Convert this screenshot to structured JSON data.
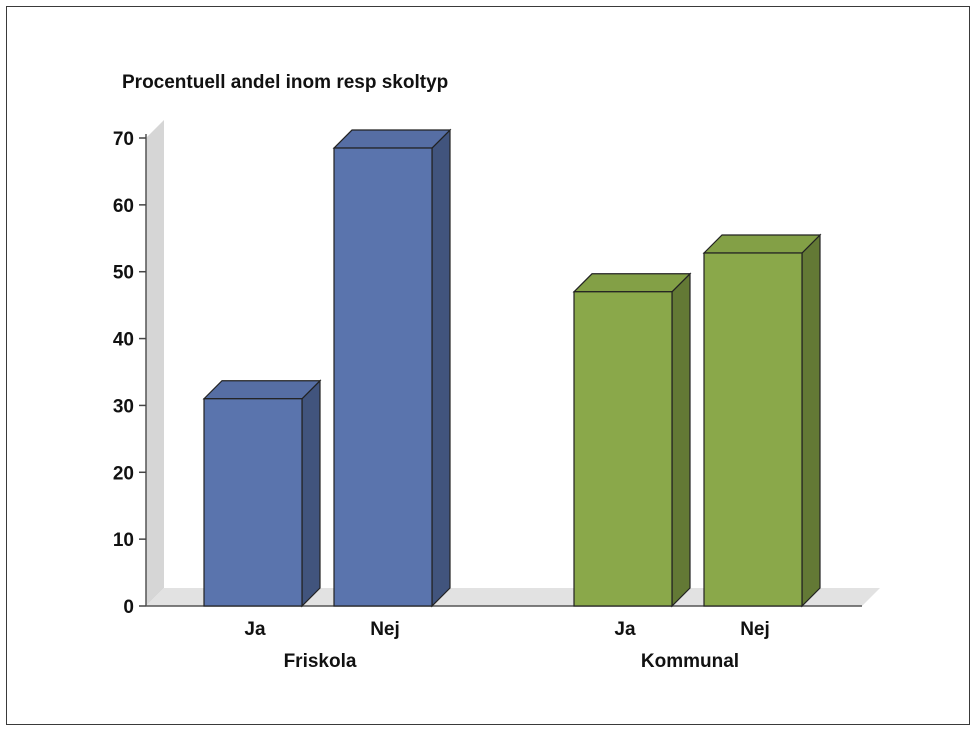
{
  "chart_data": {
    "type": "bar",
    "title": "Procentuell andel inom resp skoltyp",
    "xlabel": "",
    "ylabel": "",
    "ylim": [
      0,
      70
    ],
    "yticks": [
      0,
      10,
      20,
      30,
      40,
      50,
      60,
      70
    ],
    "grid": false,
    "legend": "none",
    "three_d": true,
    "groups": [
      {
        "label": "Friskola",
        "color": "#5a74ad",
        "bars": [
          {
            "label": "Ja",
            "value": 31
          },
          {
            "label": "Nej",
            "value": 68.5
          }
        ]
      },
      {
        "label": "Kommunal",
        "color": "#8aa84a",
        "bars": [
          {
            "label": "Ja",
            "value": 47
          },
          {
            "label": "Nej",
            "value": 52.8
          }
        ]
      }
    ]
  }
}
